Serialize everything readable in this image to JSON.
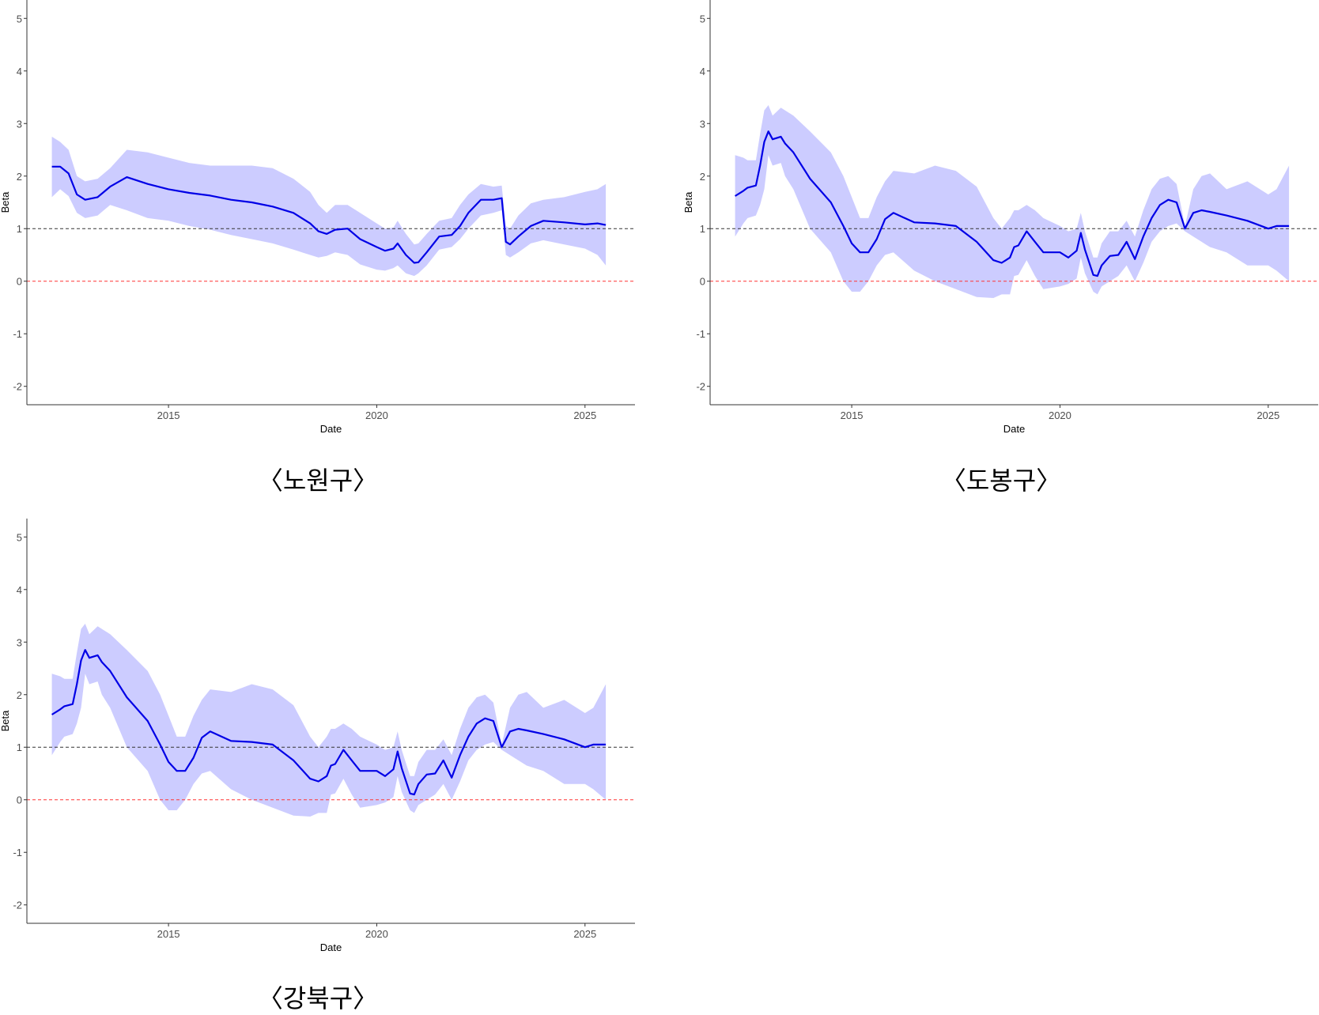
{
  "colors": {
    "line": "#0000e6",
    "ribbon": "#ccccff",
    "ref_one": "#333333",
    "ref_zero": "#ff3333",
    "axis": "#333333"
  },
  "chart_data": [
    {
      "type": "line",
      "caption": "〈노원구〉",
      "xlabel": "Date",
      "ylabel": "Beta",
      "xlim": [
        2011.6,
        2026.2
      ],
      "ylim": [
        -2.35,
        5.35
      ],
      "xticks": [
        2015,
        2020,
        2025
      ],
      "yticks": [
        -2,
        -1,
        0,
        1,
        2,
        3,
        4,
        5
      ],
      "hlines": [
        1,
        0
      ],
      "series": [
        {
          "name": "Beta",
          "x": [
            2012.2,
            2012.4,
            2012.6,
            2012.8,
            2013.0,
            2013.3,
            2013.6,
            2014.0,
            2014.5,
            2015.0,
            2015.5,
            2016.0,
            2016.5,
            2017.0,
            2017.5,
            2018.0,
            2018.4,
            2018.6,
            2018.8,
            2019.0,
            2019.3,
            2019.6,
            2020.0,
            2020.2,
            2020.4,
            2020.5,
            2020.7,
            2020.9,
            2021.0,
            2021.2,
            2021.5,
            2021.8,
            2022.0,
            2022.2,
            2022.5,
            2022.8,
            2023.0,
            2023.1,
            2023.2,
            2023.4,
            2023.7,
            2024.0,
            2024.5,
            2025.0,
            2025.3,
            2025.5
          ],
          "values": [
            2.18,
            2.18,
            2.05,
            1.65,
            1.55,
            1.6,
            1.8,
            1.98,
            1.85,
            1.75,
            1.68,
            1.63,
            1.55,
            1.5,
            1.42,
            1.3,
            1.1,
            0.95,
            0.9,
            0.98,
            1.0,
            0.8,
            0.65,
            0.58,
            0.62,
            0.72,
            0.5,
            0.35,
            0.36,
            0.55,
            0.85,
            0.88,
            1.05,
            1.3,
            1.55,
            1.55,
            1.58,
            0.75,
            0.7,
            0.85,
            1.05,
            1.15,
            1.12,
            1.08,
            1.1,
            1.07
          ],
          "lower": [
            1.6,
            1.75,
            1.62,
            1.3,
            1.2,
            1.25,
            1.45,
            1.35,
            1.2,
            1.15,
            1.05,
            0.98,
            0.88,
            0.8,
            0.72,
            0.6,
            0.5,
            0.45,
            0.48,
            0.55,
            0.5,
            0.32,
            0.22,
            0.2,
            0.25,
            0.3,
            0.15,
            0.1,
            0.15,
            0.3,
            0.6,
            0.65,
            0.8,
            1.0,
            1.25,
            1.3,
            1.35,
            0.5,
            0.45,
            0.55,
            0.72,
            0.78,
            0.7,
            0.62,
            0.5,
            0.3
          ],
          "upper": [
            2.75,
            2.65,
            2.5,
            2.0,
            1.9,
            1.95,
            2.15,
            2.5,
            2.45,
            2.35,
            2.25,
            2.2,
            2.2,
            2.2,
            2.15,
            1.95,
            1.7,
            1.45,
            1.3,
            1.45,
            1.45,
            1.3,
            1.1,
            1.0,
            1.02,
            1.15,
            0.9,
            0.7,
            0.72,
            0.9,
            1.15,
            1.2,
            1.45,
            1.65,
            1.85,
            1.8,
            1.82,
            1.05,
            1.0,
            1.25,
            1.48,
            1.55,
            1.6,
            1.7,
            1.75,
            1.85
          ]
        }
      ]
    },
    {
      "type": "line",
      "caption": "〈도봉구〉",
      "xlabel": "Date",
      "ylabel": "Beta",
      "xlim": [
        2011.6,
        2026.2
      ],
      "ylim": [
        -2.35,
        5.35
      ],
      "xticks": [
        2015,
        2020,
        2025
      ],
      "yticks": [
        -2,
        -1,
        0,
        1,
        2,
        3,
        4,
        5
      ],
      "hlines": [
        1,
        0
      ],
      "series": [
        {
          "name": "Beta",
          "x": [
            2012.2,
            2012.4,
            2012.5,
            2012.7,
            2012.8,
            2012.9,
            2013.0,
            2013.1,
            2013.3,
            2013.4,
            2013.6,
            2014.0,
            2014.5,
            2014.8,
            2015.0,
            2015.2,
            2015.4,
            2015.6,
            2015.8,
            2016.0,
            2016.5,
            2017.0,
            2017.5,
            2018.0,
            2018.4,
            2018.6,
            2018.8,
            2018.9,
            2019.0,
            2019.2,
            2019.4,
            2019.6,
            2020.0,
            2020.2,
            2020.4,
            2020.5,
            2020.6,
            2020.8,
            2020.9,
            2021.0,
            2021.2,
            2021.4,
            2021.6,
            2021.8,
            2022.0,
            2022.2,
            2022.4,
            2022.6,
            2022.8,
            2023.0,
            2023.2,
            2023.4,
            2023.6,
            2024.0,
            2024.5,
            2025.0,
            2025.2,
            2025.5
          ],
          "values": [
            1.62,
            1.72,
            1.78,
            1.82,
            2.2,
            2.65,
            2.85,
            2.7,
            2.75,
            2.62,
            2.45,
            1.95,
            1.5,
            1.05,
            0.72,
            0.55,
            0.55,
            0.8,
            1.18,
            1.3,
            1.12,
            1.1,
            1.05,
            0.75,
            0.4,
            0.35,
            0.45,
            0.65,
            0.68,
            0.95,
            0.75,
            0.55,
            0.55,
            0.45,
            0.58,
            0.92,
            0.6,
            0.12,
            0.1,
            0.3,
            0.48,
            0.5,
            0.75,
            0.42,
            0.85,
            1.2,
            1.45,
            1.55,
            1.5,
            1.0,
            1.3,
            1.35,
            1.32,
            1.25,
            1.15,
            1.0,
            1.05,
            1.05
          ],
          "lower": [
            0.85,
            1.1,
            1.2,
            1.25,
            1.45,
            1.75,
            2.4,
            2.2,
            2.25,
            2.0,
            1.75,
            1.0,
            0.55,
            0.0,
            -0.2,
            -0.2,
            0.0,
            0.3,
            0.5,
            0.55,
            0.2,
            0.0,
            -0.15,
            -0.3,
            -0.32,
            -0.25,
            -0.25,
            0.1,
            0.12,
            0.4,
            0.1,
            -0.15,
            -0.1,
            -0.05,
            0.05,
            0.45,
            0.15,
            -0.2,
            -0.25,
            -0.1,
            0.0,
            0.1,
            0.3,
            0.0,
            0.35,
            0.75,
            0.95,
            1.05,
            1.1,
            0.95,
            0.85,
            0.75,
            0.65,
            0.55,
            0.3,
            0.3,
            0.2,
            0.0
          ],
          "upper": [
            2.4,
            2.35,
            2.3,
            2.3,
            2.8,
            3.25,
            3.35,
            3.15,
            3.3,
            3.25,
            3.15,
            2.85,
            2.45,
            2.0,
            1.6,
            1.2,
            1.2,
            1.6,
            1.9,
            2.1,
            2.05,
            2.2,
            2.1,
            1.8,
            1.2,
            1.0,
            1.2,
            1.35,
            1.35,
            1.45,
            1.35,
            1.2,
            1.05,
            0.95,
            1.0,
            1.3,
            0.95,
            0.45,
            0.45,
            0.72,
            0.95,
            0.95,
            1.15,
            0.85,
            1.35,
            1.75,
            1.95,
            2.0,
            1.85,
            1.05,
            1.75,
            2.0,
            2.05,
            1.75,
            1.9,
            1.65,
            1.75,
            2.2
          ]
        }
      ]
    },
    {
      "type": "line",
      "caption": "〈강북구〉",
      "xlabel": "Date",
      "ylabel": "Beta",
      "xlim": [
        2011.6,
        2026.2
      ],
      "ylim": [
        -2.35,
        5.35
      ],
      "xticks": [
        2015,
        2020,
        2025
      ],
      "yticks": [
        -2,
        -1,
        0,
        1,
        2,
        3,
        4,
        5
      ],
      "hlines": [
        1,
        0
      ],
      "series": [
        {
          "name": "Beta",
          "x": [
            2012.2,
            2012.4,
            2012.5,
            2012.7,
            2012.8,
            2012.9,
            2013.0,
            2013.1,
            2013.3,
            2013.4,
            2013.6,
            2014.0,
            2014.5,
            2014.8,
            2015.0,
            2015.2,
            2015.4,
            2015.6,
            2015.8,
            2016.0,
            2016.5,
            2017.0,
            2017.5,
            2018.0,
            2018.4,
            2018.6,
            2018.8,
            2018.9,
            2019.0,
            2019.2,
            2019.4,
            2019.6,
            2020.0,
            2020.2,
            2020.4,
            2020.5,
            2020.6,
            2020.8,
            2020.9,
            2021.0,
            2021.2,
            2021.4,
            2021.6,
            2021.8,
            2022.0,
            2022.2,
            2022.4,
            2022.6,
            2022.8,
            2023.0,
            2023.2,
            2023.4,
            2023.6,
            2024.0,
            2024.5,
            2025.0,
            2025.2,
            2025.5
          ],
          "values": [
            1.62,
            1.72,
            1.78,
            1.82,
            2.2,
            2.65,
            2.85,
            2.7,
            2.75,
            2.62,
            2.45,
            1.95,
            1.5,
            1.05,
            0.72,
            0.55,
            0.55,
            0.8,
            1.18,
            1.3,
            1.12,
            1.1,
            1.05,
            0.75,
            0.4,
            0.35,
            0.45,
            0.65,
            0.68,
            0.95,
            0.75,
            0.55,
            0.55,
            0.45,
            0.58,
            0.92,
            0.6,
            0.12,
            0.1,
            0.3,
            0.48,
            0.5,
            0.75,
            0.42,
            0.85,
            1.2,
            1.45,
            1.55,
            1.5,
            1.0,
            1.3,
            1.35,
            1.32,
            1.25,
            1.15,
            1.0,
            1.05,
            1.05
          ],
          "lower": [
            0.85,
            1.1,
            1.2,
            1.25,
            1.45,
            1.75,
            2.4,
            2.2,
            2.25,
            2.0,
            1.75,
            1.0,
            0.55,
            0.0,
            -0.2,
            -0.2,
            0.0,
            0.3,
            0.5,
            0.55,
            0.2,
            0.0,
            -0.15,
            -0.3,
            -0.32,
            -0.25,
            -0.25,
            0.1,
            0.12,
            0.4,
            0.1,
            -0.15,
            -0.1,
            -0.05,
            0.05,
            0.45,
            0.15,
            -0.2,
            -0.25,
            -0.1,
            0.0,
            0.1,
            0.3,
            0.0,
            0.35,
            0.75,
            0.95,
            1.05,
            1.1,
            0.95,
            0.85,
            0.75,
            0.65,
            0.55,
            0.3,
            0.3,
            0.2,
            0.0
          ],
          "upper": [
            2.4,
            2.35,
            2.3,
            2.3,
            2.8,
            3.25,
            3.35,
            3.15,
            3.3,
            3.25,
            3.15,
            2.85,
            2.45,
            2.0,
            1.6,
            1.2,
            1.2,
            1.6,
            1.9,
            2.1,
            2.05,
            2.2,
            2.1,
            1.8,
            1.2,
            1.0,
            1.2,
            1.35,
            1.35,
            1.45,
            1.35,
            1.2,
            1.05,
            0.95,
            1.0,
            1.3,
            0.95,
            0.45,
            0.45,
            0.72,
            0.95,
            0.95,
            1.15,
            0.85,
            1.35,
            1.75,
            1.95,
            2.0,
            1.85,
            1.05,
            1.75,
            2.0,
            2.05,
            1.75,
            1.9,
            1.65,
            1.75,
            2.2
          ]
        }
      ]
    }
  ]
}
